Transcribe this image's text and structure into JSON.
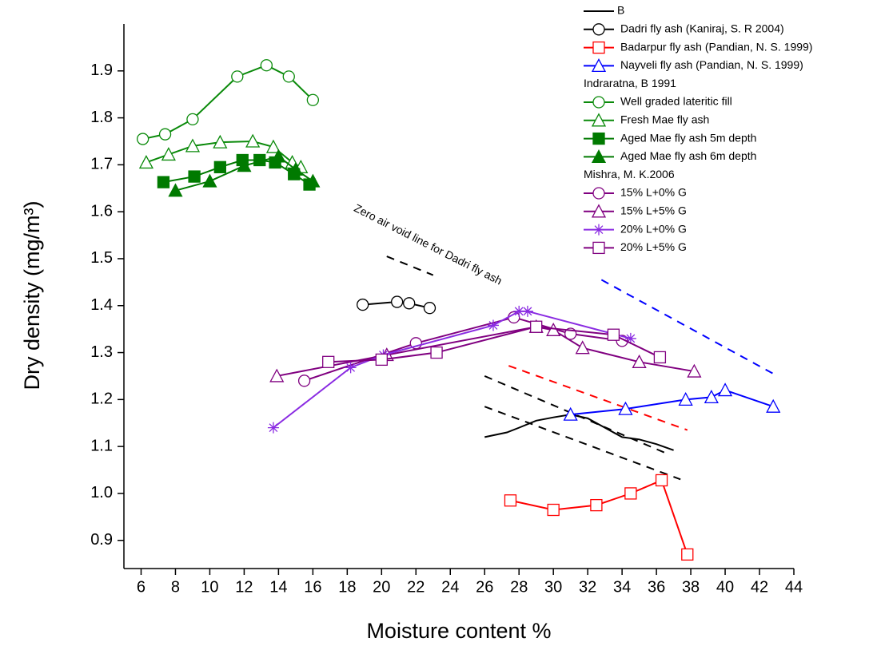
{
  "chart_data": {
    "type": "line",
    "x_label": "Moisture content %",
    "y_label": "Dry density (mg/m³)",
    "xlim": [
      5,
      44
    ],
    "ylim": [
      0.84,
      2.0
    ],
    "xticks": [
      6,
      8,
      10,
      12,
      14,
      16,
      18,
      20,
      22,
      24,
      26,
      28,
      30,
      32,
      34,
      36,
      38,
      40,
      42,
      44
    ],
    "yticks": [
      0.9,
      {
        "value": 1.0,
        "label": "1.0"
      },
      1.1,
      1.2,
      1.3,
      1.4,
      1.5,
      1.6,
      1.7,
      1.8,
      1.9
    ],
    "grid": false,
    "legend": "top-right",
    "annotation": "Zero air void line for Dadri fly ash",
    "groups": [
      {
        "series": [
          {
            "name": "B",
            "color": "#000000",
            "marker": "none",
            "x": [
              26,
              27.3,
              28,
              29,
              30,
              31,
              32,
              33,
              34,
              35,
              36,
              37
            ],
            "y": [
              1.12,
              1.13,
              1.14,
              1.155,
              1.162,
              1.168,
              1.16,
              1.14,
              1.12,
              1.115,
              1.105,
              1.092
            ]
          },
          {
            "name": "Dadri fly ash (Kaniraj, S. R 2004)",
            "color": "#000000",
            "marker": "circle",
            "x": [
              18.9,
              20.9,
              21.6,
              22.8
            ],
            "y": [
              1.402,
              1.408,
              1.405,
              1.395
            ]
          },
          {
            "name": "Badarpur fly ash (Pandian, N. S. 1999)",
            "color": "#ff0000",
            "marker": "square",
            "x": [
              27.5,
              30,
              32.5,
              34.5,
              36.3,
              37.8
            ],
            "y": [
              0.985,
              0.965,
              0.975,
              1.0,
              1.028,
              0.87
            ]
          },
          {
            "name": "Nayveli fly ash (Pandian, N. S. 1999)",
            "color": "#0000ff",
            "marker": "triangle",
            "x": [
              31,
              34.2,
              37.7,
              39.2,
              40,
              42.8
            ],
            "y": [
              1.168,
              1.18,
              1.2,
              1.205,
              1.22,
              1.185
            ]
          }
        ]
      },
      {
        "name": "Indraratna, B 1991",
        "series": [
          {
            "name": "Well graded lateritic fill",
            "color": "#0a8a0a",
            "marker": "circle",
            "x": [
              6.1,
              7.4,
              9,
              11.6,
              13.3,
              14.6,
              16
            ],
            "y": [
              1.755,
              1.765,
              1.797,
              1.888,
              1.912,
              1.888,
              1.838
            ]
          },
          {
            "name": "Fresh Mae fly ash",
            "color": "#0a8a0a",
            "marker": "triangle",
            "x": [
              6.3,
              7.6,
              9,
              10.6,
              12.5,
              13.7,
              14.8,
              15.3
            ],
            "y": [
              1.705,
              1.722,
              1.74,
              1.748,
              1.75,
              1.738,
              1.705,
              1.695
            ]
          },
          {
            "name": "Aged Mae fly ash 5m depth",
            "color": "#007a00",
            "marker": "filled-square",
            "x": [
              7.3,
              9.1,
              10.6,
              11.9,
              12.9,
              13.8,
              14.9,
              15.8
            ],
            "y": [
              1.663,
              1.675,
              1.695,
              1.71,
              1.71,
              1.705,
              1.68,
              1.658
            ]
          },
          {
            "name": "Aged Mae fly ash 6m depth",
            "color": "#007a00",
            "marker": "filled-triangle",
            "x": [
              8,
              10,
              12,
              14,
              15,
              16
            ],
            "y": [
              1.645,
              1.665,
              1.698,
              1.718,
              1.69,
              1.665
            ]
          }
        ]
      },
      {
        "name": "Mishra, M. K.2006",
        "series": [
          {
            "name": "15% L+0% G",
            "color": "#800080",
            "marker": "circle",
            "x": [
              15.5,
              22,
              27.7,
              31,
              34
            ],
            "y": [
              1.24,
              1.32,
              1.375,
              1.34,
              1.325
            ]
          },
          {
            "name": "15% L+5% G",
            "color": "#800080",
            "marker": "triangle",
            "x": [
              13.9,
              20.3,
              29,
              30,
              31.7,
              35,
              38.2
            ],
            "y": [
              1.25,
              1.295,
              1.355,
              1.348,
              1.31,
              1.28,
              1.26
            ]
          },
          {
            "name": "20% L+0% G",
            "color": "#8a2be2",
            "marker": "star",
            "x": [
              13.7,
              18.2,
              20.1,
              26.5,
              28,
              28.5,
              34.5
            ],
            "y": [
              1.14,
              1.268,
              1.295,
              1.358,
              1.388,
              1.388,
              1.33
            ]
          },
          {
            "name": "20% L+5% G",
            "color": "#800080",
            "marker": "square",
            "x": [
              16.9,
              20,
              23.2,
              29,
              33.5,
              36.2
            ],
            "y": [
              1.28,
              1.285,
              1.3,
              1.355,
              1.338,
              1.29
            ]
          }
        ]
      }
    ],
    "dashed_lines": [
      {
        "color": "#000000",
        "x": [
          20.3,
          23
        ],
        "y": [
          1.505,
          1.465
        ]
      },
      {
        "color": "#000000",
        "x": [
          26,
          36.6
        ],
        "y": [
          1.25,
          1.085
        ]
      },
      {
        "color": "#000000",
        "x": [
          26,
          37.4
        ],
        "y": [
          1.185,
          1.03
        ]
      },
      {
        "color": "#ff0000",
        "x": [
          27.4,
          37.8
        ],
        "y": [
          1.272,
          1.135
        ]
      },
      {
        "color": "#0000ff",
        "x": [
          32.8,
          42.8
        ],
        "y": [
          1.455,
          1.255
        ]
      }
    ]
  }
}
